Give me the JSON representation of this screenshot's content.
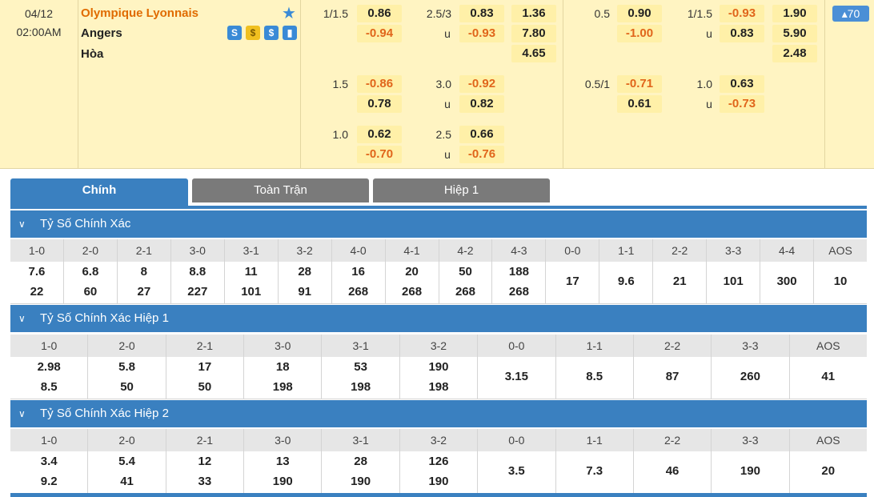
{
  "match": {
    "date": "04/12",
    "time": "02:00AM",
    "home": "Olympique Lyonnais",
    "away": "Angers",
    "draw": "Hòa",
    "more_count": "▴70",
    "icons": [
      "stats-s-icon",
      "coin-icon",
      "dollar-icon",
      "chart-icon"
    ],
    "icon_glyphs": [
      "S",
      "$",
      "$",
      "▮"
    ]
  },
  "odds_rows": [
    {
      "ft_hcp": "1/1.5",
      "ft_hcp_home": "0.86",
      "ft_hcp_away": "-0.94",
      "ft_ou": "2.5/3",
      "ft_ou_over": "0.83",
      "ft_ou_u": "u",
      "ft_ou_under": "-0.93",
      "ft_1x2": [
        "1.36",
        "7.80",
        "4.65"
      ],
      "h1_hcp": "0.5",
      "h1_hcp_home": "0.90",
      "h1_hcp_away": "-1.00",
      "h1_ou": "1/1.5",
      "h1_ou_over": "-0.93",
      "h1_ou_u": "u",
      "h1_ou_under": "0.83",
      "h1_1x2": [
        "1.90",
        "5.90",
        "2.48"
      ]
    },
    {
      "ft_hcp": "1.5",
      "ft_hcp_home": "-0.86",
      "ft_hcp_away": "0.78",
      "ft_ou": "3.0",
      "ft_ou_over": "-0.92",
      "ft_ou_u": "u",
      "ft_ou_under": "0.82",
      "h1_hcp": "0.5/1",
      "h1_hcp_home": "-0.71",
      "h1_hcp_away": "0.61",
      "h1_ou": "1.0",
      "h1_ou_over": "0.63",
      "h1_ou_u": "u",
      "h1_ou_under": "-0.73"
    },
    {
      "ft_hcp": "1.0",
      "ft_hcp_home": "0.62",
      "ft_hcp_away": "-0.70",
      "ft_ou": "2.5",
      "ft_ou_over": "0.66",
      "ft_ou_u": "u",
      "ft_ou_under": "-0.76"
    }
  ],
  "tabs": [
    {
      "label": "Chính"
    },
    {
      "label": "Toàn Trận"
    },
    {
      "label": "Hiệp 1"
    }
  ],
  "sections": [
    {
      "title": "Tỷ Số Chính Xác",
      "headers": [
        "1-0",
        "2-0",
        "2-1",
        "3-0",
        "3-1",
        "3-2",
        "4-0",
        "4-1",
        "4-2",
        "4-3",
        "0-0",
        "1-1",
        "2-2",
        "3-3",
        "4-4",
        "AOS"
      ],
      "values": [
        [
          "7.6",
          "22"
        ],
        [
          "6.8",
          "60"
        ],
        [
          "8",
          "27"
        ],
        [
          "8.8",
          "227"
        ],
        [
          "11",
          "101"
        ],
        [
          "28",
          "91"
        ],
        [
          "16",
          "268"
        ],
        [
          "20",
          "268"
        ],
        [
          "50",
          "268"
        ],
        [
          "188",
          "268"
        ],
        [
          "17"
        ],
        [
          "9.6"
        ],
        [
          "21"
        ],
        [
          "101"
        ],
        [
          "300"
        ],
        [
          "10"
        ]
      ]
    },
    {
      "title": "Tỷ Số Chính Xác Hiệp 1",
      "headers": [
        "1-0",
        "2-0",
        "2-1",
        "3-0",
        "3-1",
        "3-2",
        "0-0",
        "1-1",
        "2-2",
        "3-3",
        "AOS"
      ],
      "values": [
        [
          "2.98",
          "8.5"
        ],
        [
          "5.8",
          "50"
        ],
        [
          "17",
          "50"
        ],
        [
          "18",
          "198"
        ],
        [
          "53",
          "198"
        ],
        [
          "190",
          "198"
        ],
        [
          "3.15"
        ],
        [
          "8.5"
        ],
        [
          "87"
        ],
        [
          "260"
        ],
        [
          "41"
        ]
      ]
    },
    {
      "title": "Tỷ Số Chính Xác Hiệp 2",
      "headers": [
        "1-0",
        "2-0",
        "2-1",
        "3-0",
        "3-1",
        "3-2",
        "0-0",
        "1-1",
        "2-2",
        "3-3",
        "AOS"
      ],
      "values": [
        [
          "3.4",
          "9.2"
        ],
        [
          "5.4",
          "41"
        ],
        [
          "12",
          "33"
        ],
        [
          "13",
          "190"
        ],
        [
          "28",
          "190"
        ],
        [
          "126",
          "190"
        ],
        [
          "3.5"
        ],
        [
          "7.3"
        ],
        [
          "46"
        ],
        [
          "190"
        ],
        [
          "20"
        ]
      ]
    }
  ]
}
